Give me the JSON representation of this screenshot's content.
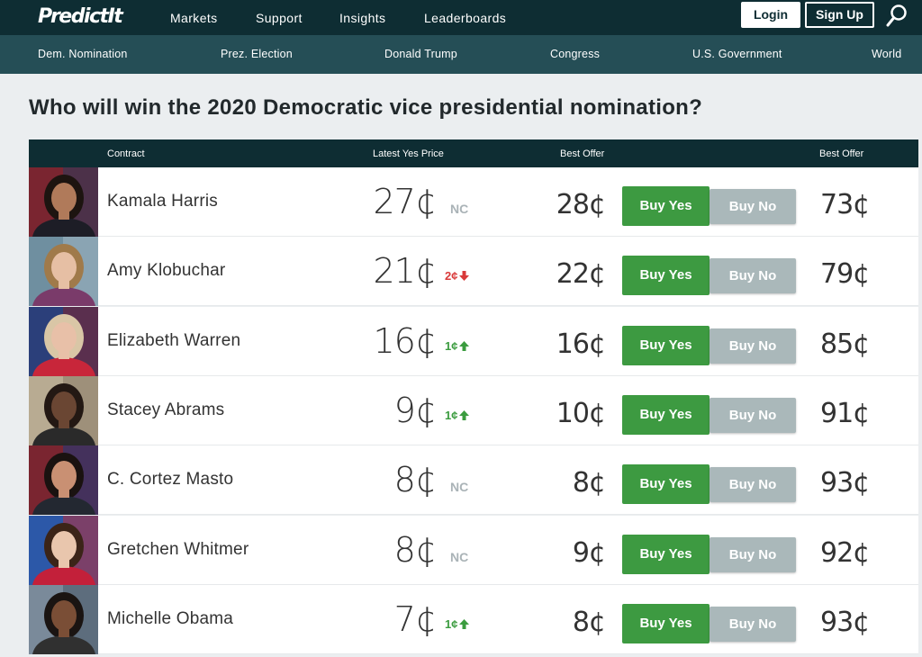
{
  "brand": {
    "logo_text": "PredictIt"
  },
  "topnav": {
    "items": [
      "Markets",
      "Support",
      "Insights",
      "Leaderboards"
    ],
    "login": "Login",
    "signup": "Sign Up"
  },
  "subnav": {
    "items": [
      "Dem. Nomination",
      "Prez. Election",
      "Donald Trump",
      "Congress",
      "U.S. Government",
      "World"
    ]
  },
  "market": {
    "title": "Who will win the 2020 Democratic vice presidential nomination?"
  },
  "table": {
    "headers": {
      "contract": "Contract",
      "latest_yes": "Latest Yes Price",
      "best_offer_yes": "Best Offer",
      "best_offer_no": "Best Offer"
    },
    "buy_yes_label": "Buy Yes",
    "buy_no_label": "Buy No",
    "rows": [
      {
        "name": "Kamala Harris",
        "price": "27¢",
        "change": "NC",
        "direction": "none",
        "yes_offer": "28¢",
        "no_offer": "73¢"
      },
      {
        "name": "Amy Klobuchar",
        "price": "21¢",
        "change": "2¢",
        "direction": "down",
        "yes_offer": "22¢",
        "no_offer": "79¢"
      },
      {
        "name": "Elizabeth Warren",
        "price": "16¢",
        "change": "1¢",
        "direction": "up",
        "yes_offer": "16¢",
        "no_offer": "85¢"
      },
      {
        "name": "Stacey Abrams",
        "price": "9¢",
        "change": "1¢",
        "direction": "up",
        "yes_offer": "10¢",
        "no_offer": "91¢"
      },
      {
        "name": "C. Cortez Masto",
        "price": "8¢",
        "change": "NC",
        "direction": "none",
        "yes_offer": "8¢",
        "no_offer": "93¢"
      },
      {
        "name": "Gretchen Whitmer",
        "price": "8¢",
        "change": "NC",
        "direction": "none",
        "yes_offer": "9¢",
        "no_offer": "92¢"
      },
      {
        "name": "Michelle Obama",
        "price": "7¢",
        "change": "1¢",
        "direction": "up",
        "yes_offer": "8¢",
        "no_offer": "93¢"
      }
    ]
  },
  "colors": {
    "topbar": "#0e2d33",
    "subbar": "#254e56",
    "buy_yes": "#3d9a41",
    "buy_no": "#aab8ba",
    "up": "#3b9c3f",
    "down": "#d93a3a"
  }
}
